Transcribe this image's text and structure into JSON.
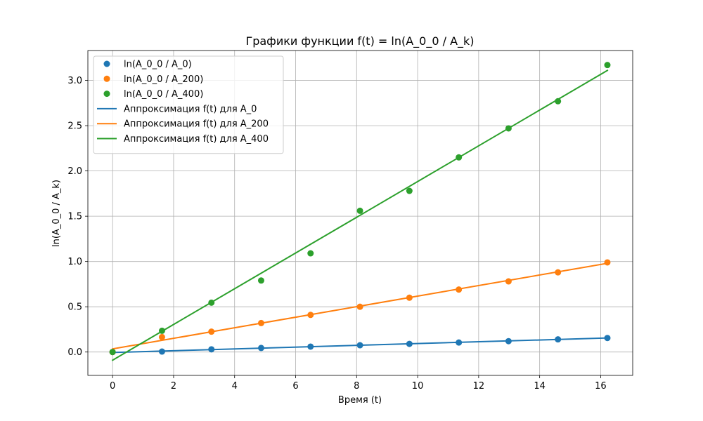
{
  "chart_data": {
    "type": "scatter",
    "title": "Графики функции f(t) = ln(A_0_0 / A_k)",
    "xlabel": "Время (t)",
    "ylabel": "ln(A_0_0 / A_k)",
    "xlim": [
      -0.81,
      17.05
    ],
    "ylim": [
      -0.258,
      3.33
    ],
    "grid": true,
    "legend_position": "upper-left",
    "x_ticks": [
      0,
      2,
      4,
      6,
      8,
      10,
      12,
      14,
      16
    ],
    "x_tick_labels": [
      "0",
      "2",
      "4",
      "6",
      "8",
      "10",
      "12",
      "14",
      "16"
    ],
    "y_ticks": [
      0.0,
      0.5,
      1.0,
      1.5,
      2.0,
      2.5,
      3.0
    ],
    "y_tick_labels": [
      "0.0",
      "0.5",
      "1.0",
      "1.5",
      "2.0",
      "2.5",
      "3.0"
    ],
    "x": [
      0,
      1.62,
      3.24,
      4.87,
      6.49,
      8.11,
      9.73,
      11.35,
      12.98,
      14.6,
      16.22
    ],
    "series": [
      {
        "name": "ln(A_0_0 / A_0)",
        "kind": "points",
        "color": "#1f77b4",
        "values": [
          0.0,
          0.005,
          0.03,
          0.045,
          0.06,
          0.075,
          0.09,
          0.105,
          0.12,
          0.14,
          0.155
        ]
      },
      {
        "name": "ln(A_0_0 / A_200)",
        "kind": "points",
        "color": "#ff7f0e",
        "values": [
          0.0,
          0.165,
          0.225,
          0.32,
          0.41,
          0.5,
          0.6,
          0.69,
          0.78,
          0.88,
          0.99
        ]
      },
      {
        "name": "ln(A_0_0 / A_400)",
        "kind": "points",
        "color": "#2ca02c",
        "values": [
          0.0,
          0.235,
          0.545,
          0.79,
          1.09,
          1.56,
          1.78,
          2.15,
          2.47,
          2.77,
          3.17
        ]
      },
      {
        "name": "Аппроксимация f(t) для A_0",
        "kind": "line",
        "color": "#1f77b4",
        "endpoints": [
          [
            0,
            -0.005
          ],
          [
            16.22,
            0.155
          ]
        ]
      },
      {
        "name": "Аппроксимация f(t) для A_200",
        "kind": "line",
        "color": "#ff7f0e",
        "endpoints": [
          [
            0,
            0.035
          ],
          [
            16.22,
            0.98
          ]
        ]
      },
      {
        "name": "Аппроксимация f(t) для A_400",
        "kind": "line",
        "color": "#2ca02c",
        "endpoints": [
          [
            0,
            -0.09
          ],
          [
            16.22,
            3.11
          ]
        ]
      }
    ]
  }
}
